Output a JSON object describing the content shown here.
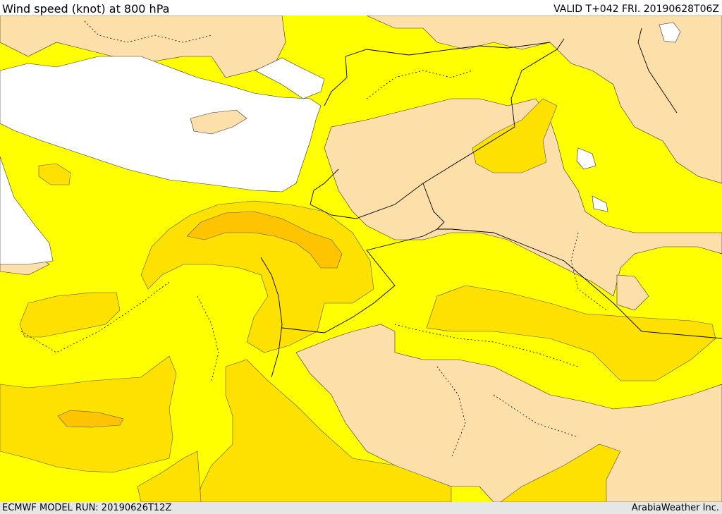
{
  "header": {
    "title": "Wind speed (knot) at 800 hPa",
    "valid_time": "VALID T+042 FRI. 20190628T06Z"
  },
  "footer": {
    "model_run": "ECMWF MODEL RUN: 20190626T12Z",
    "credit": "ArabiaWeather Inc."
  },
  "map": {
    "variable": "wind speed",
    "unit": "knot",
    "pressure_level": "800 hPa",
    "colors": {
      "calm": "#fddfa9",
      "light": "#ffff00",
      "moderate": "#ffe100",
      "strong": "#ffc400",
      "strongest": "#ffaa00",
      "sea": "#ffffff",
      "border": "#000000"
    }
  }
}
